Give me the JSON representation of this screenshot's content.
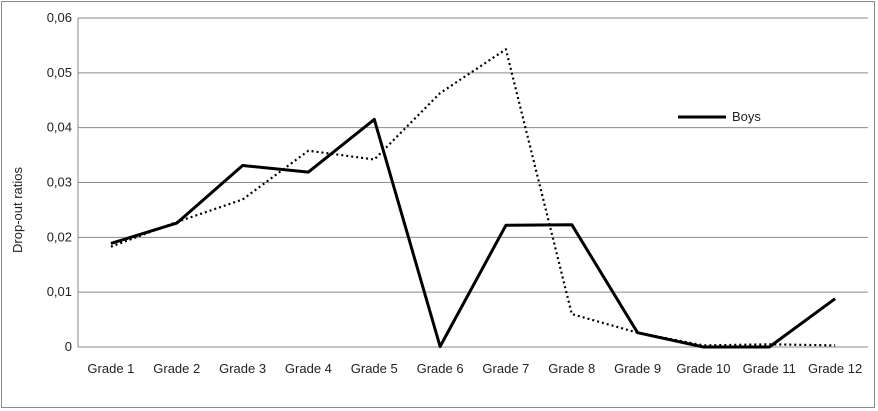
{
  "chart_data": {
    "type": "line",
    "title": "",
    "xlabel": "",
    "ylabel": "Drop-out ratios",
    "categories": [
      "Grade 1",
      "Grade 2",
      "Grade 3",
      "Grade 4",
      "Grade 5",
      "Grade 6",
      "Grade 7",
      "Grade 8",
      "Grade 9",
      "Grade 10",
      "Grade 11",
      "Grade 12"
    ],
    "ylim": [
      0,
      0.06
    ],
    "yticks": [
      0,
      0.01,
      0.02,
      0.03,
      0.04,
      0.05,
      0.06
    ],
    "ytick_labels": [
      "0",
      "0,01",
      "0,02",
      "0,03",
      "0,04",
      "0,05",
      "0,06"
    ],
    "grid": true,
    "legend_position": "right",
    "series": [
      {
        "name": "Boys",
        "style": "solid",
        "color": "#000000",
        "values": [
          0.0189,
          0.0226,
          0.0331,
          0.0319,
          0.0415,
          0.0001,
          0.0222,
          0.0223,
          0.0026,
          0.0,
          0.0,
          0.0088
        ]
      },
      {
        "name": "",
        "style": "dotted",
        "color": "#000000",
        "values": [
          0.0183,
          0.0228,
          0.0269,
          0.0358,
          0.0342,
          0.0463,
          0.0543,
          0.006,
          0.0026,
          0.0003,
          0.0005,
          0.0003
        ]
      }
    ]
  }
}
